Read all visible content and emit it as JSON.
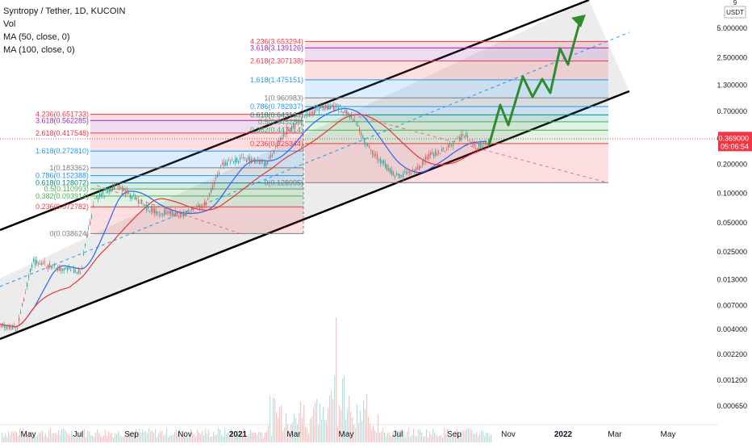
{
  "header": {
    "symbol_line": "Syntropy / Tether, 1D, KUCOIN",
    "vol_label": "Vol",
    "ma50_label": "MA (50, close, 0)",
    "ma100_label": "MA (100, close, 0)"
  },
  "currency_badge": {
    "top": "9",
    "unit": "USDT"
  },
  "price_badge": {
    "price": "0.369000",
    "countdown": "05:06:54",
    "color": "#f23645"
  },
  "colors": {
    "channel_line": "#000000",
    "channel_fill": "#e6e6e6",
    "ma50": "#2962ff",
    "ma100": "#e53935",
    "projection": "#2e8b2e",
    "candle_up": "#26a69a",
    "candle_down": "#ef5350",
    "fib_red": "#f23645",
    "fib_purple": "#9c27b0",
    "fib_blue": "#2196f3",
    "fib_teal": "#00897b",
    "fib_gray": "#787b86"
  },
  "chart_data": {
    "type": "candlestick",
    "y_scale": "log",
    "y_axis_ticks": [
      "5.000000",
      "2.500000",
      "1.300000",
      "0.700000",
      "0.369000",
      "0.200000",
      "0.100000",
      "0.050000",
      "0.025000",
      "0.013000",
      "0.007000",
      "0.004000",
      "0.002200",
      "0.001200",
      "0.000650"
    ],
    "x_axis_ticks": [
      "May",
      "Jul",
      "Sep",
      "Nov",
      "2021",
      "Mar",
      "May",
      "Jul",
      "Sep",
      "Nov",
      "2022",
      "Mar",
      "May"
    ],
    "last_price": 0.369,
    "fib_set_1": [
      {
        "label": "4.236(0.651733)",
        "price": 0.6517,
        "color": "#f23645"
      },
      {
        "label": "3.618(0.562285)",
        "price": 0.5623,
        "color": "#9c27b0"
      },
      {
        "label": "2.618(0.417548)",
        "price": 0.4175,
        "color": "#f23645"
      },
      {
        "label": "1.618(0.272810)",
        "price": 0.2728,
        "color": "#2196f3"
      },
      {
        "label": "1(0.183362)",
        "price": 0.1834,
        "color": "#787b86"
      },
      {
        "label": "0.786(0.152388)",
        "price": 0.1524,
        "color": "#2196f3"
      },
      {
        "label": "0.618(0.128072)",
        "price": 0.1281,
        "color": "#00897b"
      },
      {
        "label": "0.5(0.110993)",
        "price": 0.111,
        "color": "#4caf50"
      },
      {
        "label": "0.382(0.093914)",
        "price": 0.0939,
        "color": "#4caf50"
      },
      {
        "label": "0.236(0.072782)",
        "price": 0.0728,
        "color": "#f23645"
      },
      {
        "label": "0(0.038624)",
        "price": 0.0386,
        "color": "#787b86"
      }
    ],
    "fib_set_2": [
      {
        "label": "4.236(3.653294)",
        "price": 3.6533,
        "color": "#f23645"
      },
      {
        "label": "3.618(3.139126)",
        "price": 3.1391,
        "color": "#9c27b0"
      },
      {
        "label": "2.618(2.307138)",
        "price": 2.3071,
        "color": "#f23645"
      },
      {
        "label": "1.618(1.475151)",
        "price": 1.4752,
        "color": "#2196f3"
      },
      {
        "label": "1(0.960983)",
        "price": 0.961,
        "color": "#787b86"
      },
      {
        "label": "0.786(0.782937)",
        "price": 0.7829,
        "color": "#2196f3"
      },
      {
        "label": "0.618(0.643163)",
        "price": 0.6432,
        "color": "#00897b"
      },
      {
        "label": "0.5(0.545289)",
        "price": 0.5453,
        "color": "#4caf50"
      },
      {
        "label": "0.382(0.447414)",
        "price": 0.4474,
        "color": "#4caf50"
      },
      {
        "label": "0.236(0.325344)",
        "price": 0.3253,
        "color": "#f23645"
      },
      {
        "label": "0(0.128995)",
        "price": 0.129,
        "color": "#787b86"
      }
    ]
  }
}
